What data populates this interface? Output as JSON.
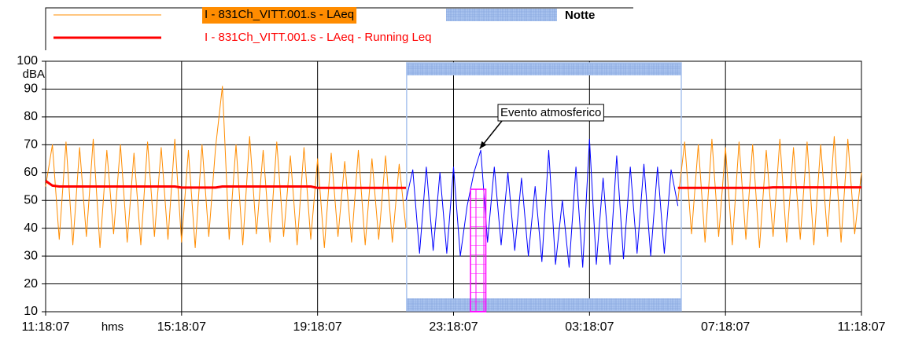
{
  "chart_data": {
    "type": "line",
    "x_label": "hms",
    "y_label": "dBA",
    "x": [
      0,
      0.2,
      0.4,
      0.6,
      0.8,
      1,
      1.2,
      1.4,
      1.6,
      1.8,
      2,
      2.2,
      2.4,
      2.6,
      2.8,
      3,
      3.2,
      3.4,
      3.6,
      3.8,
      4,
      4.2,
      4.4,
      4.6,
      4.8,
      5,
      5.2,
      5.4,
      5.6,
      5.8,
      6,
      6.2,
      6.4,
      6.6,
      6.8,
      7,
      7.2,
      7.4,
      7.6,
      7.8,
      8,
      8.2,
      8.4,
      8.6,
      8.8,
      9,
      9.2,
      9.4,
      9.6,
      9.8,
      10,
      10.2,
      10.4,
      10.6,
      10.8,
      11,
      11.2,
      11.4,
      11.6,
      11.8,
      12,
      12.2,
      12.4,
      12.6,
      12.8,
      13,
      13.2,
      13.4,
      13.6,
      13.8,
      14,
      14.2,
      14.4,
      14.6,
      14.8,
      15,
      15.2,
      15.4,
      15.6,
      15.8,
      16,
      16.2,
      16.4,
      16.6,
      16.8,
      17,
      17.2,
      17.4,
      17.6,
      17.8,
      18,
      18.2,
      18.4,
      18.6,
      18.8,
      19,
      19.2,
      19.4,
      19.6,
      19.8,
      20,
      20.2,
      20.4,
      20.6,
      20.8,
      21,
      21.2,
      21.4,
      21.6,
      21.8,
      22,
      22.2,
      22.4,
      22.6,
      22.8,
      23,
      23.2,
      23.4,
      23.6,
      23.8,
      24
    ],
    "series": [
      {
        "name": "I - 831Ch_VITT.001.s - LAeq",
        "color": "#ff8c00",
        "width": 1,
        "values": [
          55,
          70,
          36,
          71,
          34,
          69,
          37,
          72,
          33,
          68,
          38,
          70,
          35,
          67,
          34,
          71,
          37,
          69,
          36,
          72,
          35,
          68,
          33,
          70,
          37,
          69,
          91,
          36,
          70,
          34,
          73,
          38,
          68,
          35,
          71,
          37,
          66,
          34,
          69,
          36,
          65,
          33,
          67,
          37,
          64,
          35,
          68,
          34,
          65,
          36,
          66,
          35,
          63,
          40,
          null,
          null,
          null,
          null,
          null,
          null,
          null,
          null,
          null,
          null,
          null,
          null,
          null,
          null,
          null,
          null,
          null,
          null,
          null,
          null,
          null,
          null,
          null,
          null,
          null,
          null,
          null,
          null,
          null,
          null,
          null,
          null,
          null,
          null,
          null,
          null,
          null,
          null,
          null,
          50,
          71,
          38,
          70,
          35,
          72,
          37,
          69,
          34,
          71,
          36,
          70,
          33,
          68,
          37,
          72,
          35,
          69,
          36,
          71,
          34,
          70,
          37,
          73,
          35,
          72,
          38,
          60
        ]
      },
      {
        "name": "I - 831Ch_VITT.001.s - LAeq - Running Leq",
        "color": "#ff0000",
        "width": 3,
        "values": [
          57,
          55.3,
          55,
          55,
          55,
          55,
          55,
          55,
          55,
          55,
          55,
          55,
          55,
          55,
          55,
          55,
          55,
          55,
          55,
          55,
          54.6,
          54.6,
          54.6,
          54.6,
          54.6,
          54.6,
          55,
          55,
          55,
          55,
          55,
          55,
          55,
          55,
          55,
          55,
          55,
          55,
          55,
          55,
          54.5,
          54.5,
          54.5,
          54.5,
          54.5,
          54.5,
          54.5,
          54.5,
          54.5,
          54.5,
          54.5,
          54.5,
          54.5,
          54.5,
          null,
          null,
          null,
          null,
          null,
          null,
          null,
          null,
          null,
          null,
          null,
          null,
          null,
          null,
          null,
          null,
          null,
          null,
          null,
          null,
          null,
          null,
          null,
          null,
          null,
          null,
          null,
          null,
          null,
          null,
          null,
          null,
          null,
          null,
          null,
          null,
          null,
          null,
          null,
          54.5,
          54.5,
          54.5,
          54.5,
          54.5,
          54.5,
          54.5,
          54.5,
          54.5,
          54.5,
          54.5,
          54.5,
          54.5,
          54.5,
          54.7,
          54.7,
          54.7,
          54.7,
          54.7,
          54.7,
          54.7,
          54.7,
          54.7,
          54.7,
          54.7,
          54.7,
          54.7,
          54.7
        ]
      },
      {
        "color": "#0000ff",
        "width": 1,
        "values": [
          null,
          null,
          null,
          null,
          null,
          null,
          null,
          null,
          null,
          null,
          null,
          null,
          null,
          null,
          null,
          null,
          null,
          null,
          null,
          null,
          null,
          null,
          null,
          null,
          null,
          null,
          null,
          null,
          null,
          null,
          null,
          null,
          null,
          null,
          null,
          null,
          null,
          null,
          null,
          null,
          null,
          null,
          null,
          null,
          null,
          null,
          null,
          null,
          null,
          null,
          null,
          null,
          null,
          50,
          61,
          31,
          62,
          32,
          60,
          31,
          62,
          30,
          48,
          60,
          68,
          35,
          62,
          34,
          60,
          32,
          58,
          30,
          55,
          28,
          68,
          27,
          50,
          26,
          62,
          26,
          72,
          27,
          58,
          27,
          66,
          29,
          62,
          31,
          63,
          30,
          62,
          31,
          61,
          48,
          null,
          null,
          null,
          null,
          null,
          null,
          null,
          null,
          null,
          null,
          null,
          null,
          null,
          null,
          null,
          null,
          null,
          null,
          null,
          null,
          null,
          null,
          null,
          null,
          null,
          null,
          null
        ]
      }
    ],
    "regions": [
      {
        "name": "Notte",
        "x": [
          10.62,
          18.7
        ],
        "color": "#a9c3ee"
      }
    ],
    "highlight": {
      "x": [
        12.5,
        12.95
      ],
      "y": [
        10,
        54
      ],
      "color": "#ff00ff"
    },
    "annotation": {
      "text": "Evento atmosferico",
      "x": 12.7,
      "y": 68
    },
    "xlim": [
      0,
      24
    ],
    "xticks": [
      {
        "value": 0,
        "label": "11:18:07"
      },
      {
        "value": 4,
        "label": "15:18:07"
      },
      {
        "value": 8,
        "label": "19:18:07"
      },
      {
        "value": 12,
        "label": "23:18:07"
      },
      {
        "value": 16,
        "label": "03:18:07"
      },
      {
        "value": 20,
        "label": "07:18:07"
      },
      {
        "value": 24,
        "label": "11:18:07"
      }
    ],
    "ylim": [
      10,
      100
    ],
    "yticks": [
      10,
      20,
      30,
      40,
      50,
      60,
      70,
      80,
      90,
      100
    ],
    "grid": true
  }
}
